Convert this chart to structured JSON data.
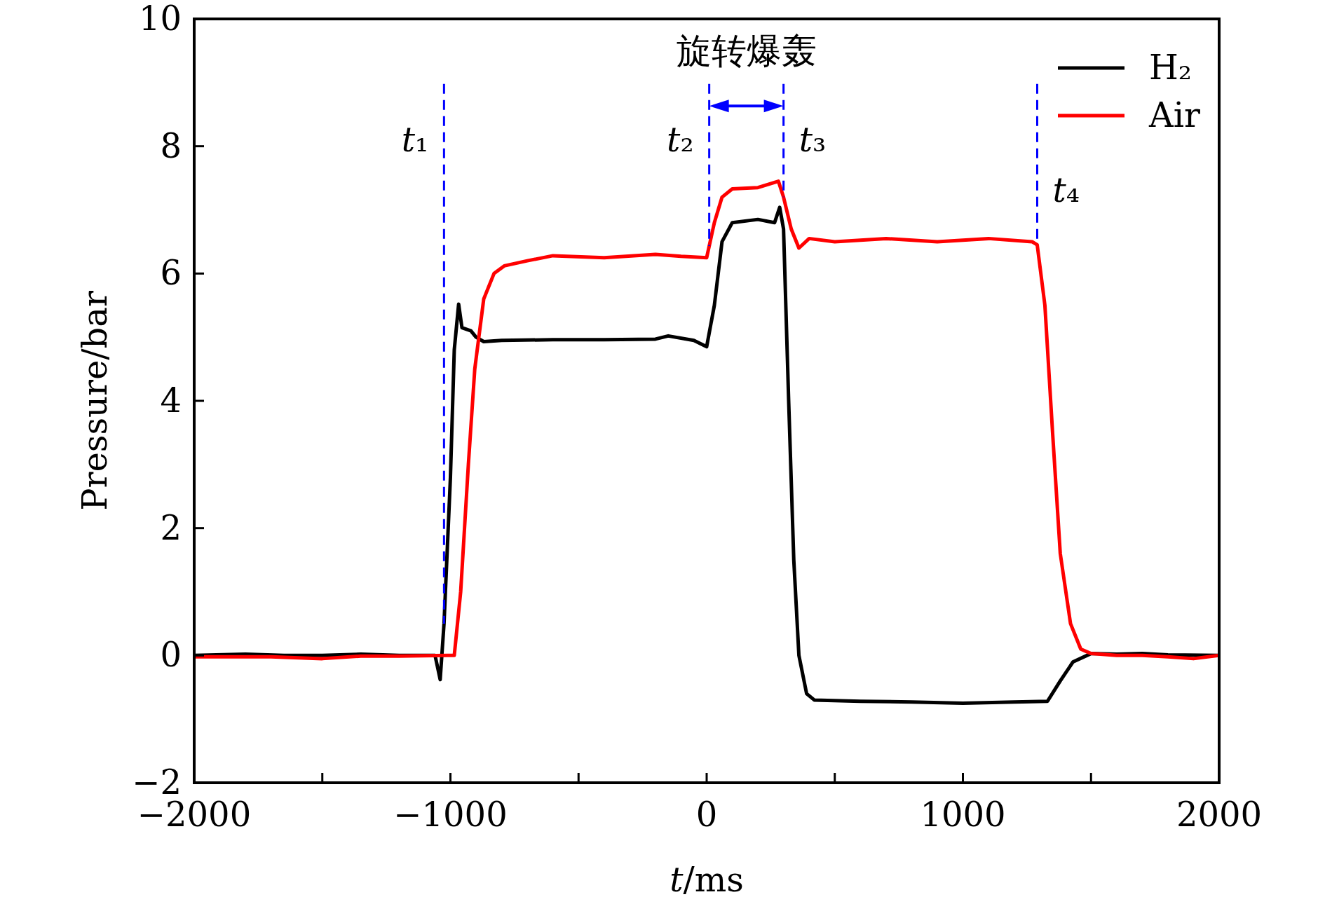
{
  "chart_data": {
    "type": "line",
    "xlabel": "t/ms",
    "ylabel": "Pressure/bar",
    "xlim": [
      -2000,
      2000
    ],
    "ylim": [
      -2,
      10
    ],
    "xticks": [
      -2000,
      {
        "value": -1500,
        "label": null
      },
      -1000,
      {
        "value": -500,
        "label": null
      },
      0,
      {
        "value": 500,
        "label": null
      },
      1000,
      {
        "value": 1500,
        "label": null
      },
      2000
    ],
    "yticks": [
      -2,
      0,
      2,
      4,
      6,
      8,
      10
    ],
    "grid": false,
    "legend": "top right",
    "line_style": "solid",
    "marker": "none",
    "series": [
      {
        "name": "H₂",
        "color": "#000000",
        "x": [
          -2000,
          -1800,
          -1650,
          -1500,
          -1350,
          -1200,
          -1060,
          -1040,
          -1025,
          -1000,
          -985,
          -968,
          -955,
          -920,
          -900,
          -870,
          -800,
          -600,
          -400,
          -200,
          -150,
          -50,
          0,
          30,
          60,
          100,
          200,
          265,
          285,
          300,
          320,
          340,
          360,
          390,
          420,
          600,
          800,
          1000,
          1200,
          1330,
          1380,
          1430,
          1500,
          1600,
          1700,
          1800,
          2000
        ],
        "values": [
          0,
          0.02,
          0,
          0,
          0.02,
          0,
          0,
          -0.38,
          0.5,
          2.8,
          4.8,
          5.52,
          5.15,
          5.1,
          5.0,
          4.93,
          4.95,
          4.96,
          4.96,
          4.97,
          5.02,
          4.95,
          4.85,
          5.5,
          6.5,
          6.8,
          6.85,
          6.8,
          7.04,
          6.7,
          4.0,
          1.5,
          0,
          -0.6,
          -0.7,
          -0.72,
          -0.73,
          -0.75,
          -0.73,
          -0.72,
          -0.4,
          -0.1,
          0.03,
          0.02,
          0.03,
          0.01,
          0
        ]
      },
      {
        "name": "Air",
        "color": "#ff0000",
        "x": [
          -2000,
          -1850,
          -1700,
          -1500,
          -1350,
          -1200,
          -1010,
          -985,
          -960,
          -930,
          -905,
          -870,
          -830,
          -790,
          -700,
          -600,
          -400,
          -200,
          -100,
          0,
          30,
          60,
          100,
          200,
          280,
          300,
          330,
          360,
          400,
          500,
          700,
          900,
          1100,
          1270,
          1290,
          1320,
          1350,
          1380,
          1420,
          1460,
          1500,
          1600,
          1700,
          1800,
          1900,
          2000
        ],
        "values": [
          -0.02,
          -0.02,
          -0.02,
          -0.05,
          -0.01,
          -0.01,
          0,
          0,
          1,
          3,
          4.5,
          5.6,
          6.0,
          6.12,
          6.2,
          6.28,
          6.25,
          6.3,
          6.27,
          6.25,
          6.8,
          7.2,
          7.33,
          7.35,
          7.45,
          7.2,
          6.7,
          6.4,
          6.55,
          6.5,
          6.55,
          6.5,
          6.55,
          6.5,
          6.45,
          5.5,
          3.5,
          1.6,
          0.5,
          0.1,
          0.03,
          0,
          0,
          -0.02,
          -0.05,
          0
        ]
      }
    ],
    "ref_lines": [
      {
        "axis": "x",
        "value": -1025,
        "label": "t₁",
        "color": "#0000ff",
        "line_style": "dashed"
      },
      {
        "axis": "x",
        "value": 10,
        "label": "t₂",
        "color": "#0000ff",
        "line_style": "dashed"
      },
      {
        "axis": "x",
        "value": 300,
        "label": "t₃",
        "color": "#0000ff",
        "line_style": "dashed"
      },
      {
        "axis": "x",
        "value": 1290,
        "label": "t₄",
        "color": "#0000ff",
        "line_style": "dashed"
      }
    ],
    "annotations": [
      "旋转爆轰"
    ]
  }
}
